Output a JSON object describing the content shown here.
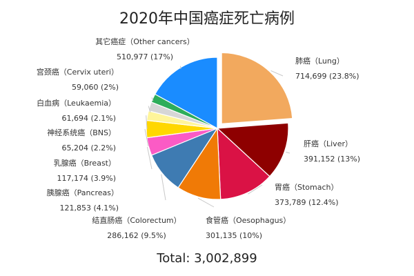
{
  "chart_data": {
    "type": "pie",
    "title": "2020年中国癌症死亡病例",
    "total_label": "Total: 3,002,899",
    "slices": [
      {
        "name": "肺癌（Lung）",
        "value": 714699,
        "value_label": "714,699",
        "percent_label": "(23.8%)",
        "color": "#F2A95E",
        "exploded": true
      },
      {
        "name": "肝癌（Liver）",
        "value": 391152,
        "value_label": "391,152",
        "percent_label": "(13%)",
        "color": "#8E0000"
      },
      {
        "name": "胃癌（Stomach）",
        "value": 373789,
        "value_label": "373,789",
        "percent_label": "(12.4%)",
        "color": "#DA1245"
      },
      {
        "name": "食管癌（Oesophagus）",
        "value": 301135,
        "value_label": "301,135",
        "percent_label": "(10%)",
        "color": "#F07A06"
      },
      {
        "name": "结直肠癌（Colorectum）",
        "value": 286162,
        "value_label": "286,162",
        "percent_label": "(9.5%)",
        "color": "#3E7BB2"
      },
      {
        "name": "胰腺癌（Pancreas）",
        "value": 121853,
        "value_label": "121,853",
        "percent_label": "(4.1%)",
        "color": "#FB5BC5"
      },
      {
        "name": "乳腺癌（Breast）",
        "value": 117174,
        "value_label": "117,174",
        "percent_label": "(3.9%)",
        "color": "#FFD700"
      },
      {
        "name": "神经系统癌（BNS）",
        "value": 65204,
        "value_label": "65,204",
        "percent_label": "(2.2%)",
        "color": "#FFF59A"
      },
      {
        "name": "白血病（Leukaemia）",
        "value": 61694,
        "value_label": "61,694",
        "percent_label": "(2.1%)",
        "color": "#D6D6D6"
      },
      {
        "name": "宫颈癌（Cervix uteri）",
        "value": 59060,
        "value_label": "59,060",
        "percent_label": "(2%)",
        "color": "#2EAD5A"
      },
      {
        "name": "其它癌症（Other cancers）",
        "value": 510977,
        "value_label": "510,977",
        "percent_label": "(17%)",
        "color": "#1A8CFF"
      }
    ]
  }
}
